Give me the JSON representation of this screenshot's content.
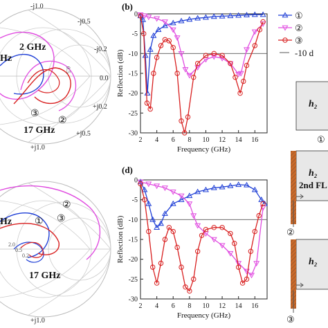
{
  "panels": {
    "smith_top": {
      "labels": [
        "-j1.0",
        "-j0.5",
        "-j0.2",
        "0.0",
        "+j0.2",
        "+j0.5",
        "+j1.0",
        "2 GHz",
        "17 GHz",
        "Hz",
        "0.5",
        "③",
        "②"
      ]
    },
    "smith_bottom": {
      "labels": [
        "+j1.0",
        "Hz",
        "①",
        "②",
        "③",
        "2.0",
        "0.5",
        "0.2",
        "17 GHz"
      ]
    },
    "right_schematic": {
      "h2_top": "h₂",
      "h2_mid": "h₂",
      "fl_label": "2nd FL",
      "h2_bottom": "h₂",
      "marker_1": "①",
      "marker_2": "②",
      "marker_3": "③"
    }
  },
  "legend": {
    "entries": [
      {
        "symbol": "①",
        "color": "#1f3fd6",
        "marker": "triangle-up"
      },
      {
        "symbol": "②",
        "color": "#e04ce0",
        "marker": "triangle-down"
      },
      {
        "symbol": "③",
        "color": "#d81e1e",
        "marker": "circle"
      },
      {
        "symbol": "-10 d",
        "color": "#555555",
        "marker": "line"
      }
    ]
  },
  "chart_data": [
    {
      "panel_label": "(b)",
      "type": "line",
      "xlabel": "Frequency (GHz)",
      "ylabel": "Reflection (dB)",
      "xlim": [
        2,
        17.5
      ],
      "ylim": [
        -30,
        0
      ],
      "xticks": [
        2,
        4,
        6,
        8,
        10,
        12,
        14,
        16
      ],
      "yticks": [
        0,
        -5,
        -10,
        -15,
        -20,
        -25,
        -30
      ],
      "reference_line": -10,
      "series": [
        {
          "name": "①",
          "color": "#1f3fd6",
          "marker": "triangle-up",
          "x": [
            2.0,
            2.3,
            2.6,
            2.85,
            3.2,
            3.6,
            4.2,
            5.0,
            6.0,
            7.0,
            8.0,
            9.0,
            10.0,
            11.0,
            12.0,
            13.0,
            14.0,
            15.0,
            16.0,
            17.0
          ],
          "y": [
            -0.5,
            -1.5,
            -10.5,
            -20.0,
            -9.0,
            -5.5,
            -4.0,
            -3.0,
            -2.3,
            -1.8,
            -1.4,
            -1.1,
            -0.9,
            -0.7,
            -0.6,
            -0.5,
            -0.4,
            -0.3,
            -0.2,
            -0.2
          ]
        },
        {
          "name": "②",
          "color": "#e04ce0",
          "marker": "triangle-down",
          "x": [
            2.0,
            2.5,
            3.0,
            4.0,
            5.0,
            6.0,
            6.5,
            7.0,
            7.5,
            8.0,
            9.0,
            10.0,
            11.0,
            12.0,
            13.0,
            14.0,
            14.3,
            15.0,
            16.0,
            17.0
          ],
          "y": [
            -0.2,
            -0.5,
            -0.8,
            -1.2,
            -2.0,
            -4.0,
            -6.0,
            -10.0,
            -14.0,
            -15.5,
            -13.5,
            -11.5,
            -10.8,
            -11.2,
            -12.5,
            -15.2,
            -15.0,
            -9.0,
            -4.5,
            -2.5
          ]
        },
        {
          "name": "③",
          "color": "#d81e1e",
          "marker": "circle",
          "x": [
            2.0,
            2.4,
            2.8,
            3.2,
            3.6,
            4.0,
            4.5,
            5.0,
            5.5,
            6.0,
            6.5,
            7.0,
            7.4,
            7.8,
            8.5,
            9.0,
            10.0,
            11.0,
            12.0,
            13.0,
            13.6,
            14.2,
            14.6,
            15.0,
            16.0,
            16.6,
            17.0
          ],
          "y": [
            -0.5,
            -5.0,
            -22.5,
            -24.0,
            -15.0,
            -11.0,
            -8.0,
            -6.5,
            -6.8,
            -8.5,
            -15.0,
            -27.0,
            -30.0,
            -26.0,
            -16.0,
            -12.5,
            -10.5,
            -10.0,
            -10.5,
            -12.5,
            -16.0,
            -20.0,
            -17.0,
            -13.0,
            -8.0,
            -4.0,
            -2.0
          ]
        }
      ]
    },
    {
      "panel_label": "(d)",
      "type": "line",
      "xlabel": "Frequency (GHz)",
      "ylabel": "Reflection (dB)",
      "xlim": [
        2,
        17.5
      ],
      "ylim": [
        -30,
        0
      ],
      "xticks": [
        2,
        4,
        6,
        8,
        10,
        12,
        14,
        16
      ],
      "yticks": [
        0,
        -5,
        -10,
        -15,
        -20,
        -25,
        -30
      ],
      "reference_line": -10,
      "series": [
        {
          "name": "①",
          "color": "#1f3fd6",
          "marker": "triangle-up",
          "x": [
            2.0,
            2.5,
            3.0,
            3.5,
            4.0,
            4.5,
            5.0,
            6.0,
            7.0,
            8.0,
            9.0,
            10.0,
            11.0,
            12.0,
            13.0,
            14.0,
            15.0,
            16.0,
            16.8,
            17.2
          ],
          "y": [
            -0.5,
            -2.5,
            -6.0,
            -10.0,
            -12.0,
            -11.0,
            -8.5,
            -6.0,
            -5.0,
            -4.0,
            -3.0,
            -2.5,
            -2.0,
            -1.8,
            -1.5,
            -1.2,
            -1.3,
            -2.5,
            -5.0,
            -6.0
          ]
        },
        {
          "name": "②",
          "color": "#e04ce0",
          "marker": "triangle-down",
          "x": [
            2.0,
            3.0,
            4.0,
            5.0,
            6.0,
            7.0,
            8.0,
            8.5,
            9.0,
            10.0,
            11.0,
            12.0,
            13.0,
            14.0,
            15.0,
            15.6,
            16.2,
            17.0
          ],
          "y": [
            -0.5,
            -1.0,
            -1.5,
            -2.0,
            -3.0,
            -4.0,
            -6.0,
            -9.0,
            -11.5,
            -13.5,
            -15.0,
            -16.5,
            -18.5,
            -21.0,
            -23.0,
            -24.0,
            -21.0,
            -7.0
          ]
        },
        {
          "name": "③",
          "color": "#d81e1e",
          "marker": "circle",
          "x": [
            2.0,
            2.5,
            3.0,
            3.5,
            4.0,
            4.5,
            5.0,
            5.5,
            6.0,
            6.5,
            7.0,
            7.5,
            8.0,
            8.5,
            9.0,
            9.5,
            10.0,
            11.0,
            12.0,
            13.0,
            13.5,
            14.0,
            14.5,
            15.0,
            15.5,
            16.0,
            16.5,
            17.0
          ],
          "y": [
            -1.0,
            -5.0,
            -13.0,
            -22.0,
            -26.0,
            -21.0,
            -15.0,
            -12.0,
            -13.0,
            -17.0,
            -22.0,
            -27.0,
            -28.0,
            -25.0,
            -18.0,
            -14.0,
            -12.5,
            -12.0,
            -12.0,
            -13.5,
            -16.0,
            -22.0,
            -26.0,
            -25.0,
            -18.0,
            -13.0,
            -9.0,
            -6.0
          ]
        }
      ]
    }
  ]
}
